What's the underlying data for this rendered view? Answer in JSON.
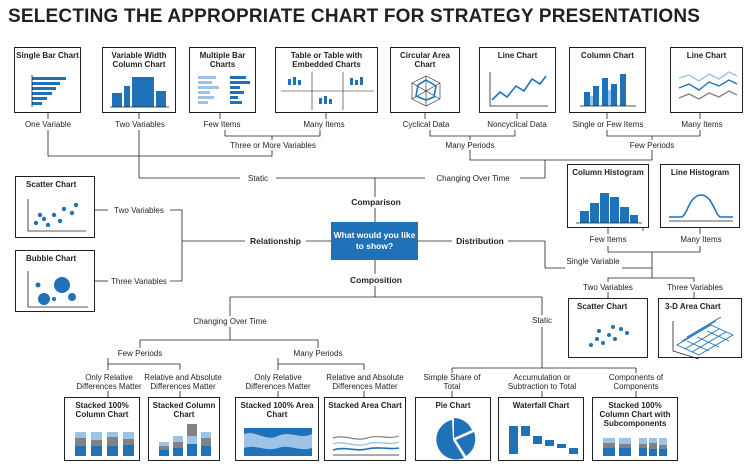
{
  "title": "SELECTING THE APPROPRIATE CHART FOR STRATEGY PRESENTATIONS",
  "center": "What would you like to show?",
  "branches": {
    "comparison": "Comparison",
    "relationship": "Relationship",
    "distribution": "Distribution",
    "composition": "Composition"
  },
  "top_boxes": [
    "Single Bar Chart",
    "Variable Width Column Chart",
    "Multiple Bar Charts",
    "Table or Table with Embedded Charts",
    "Circular Area Chart",
    "Line Chart",
    "Column Chart",
    "Line Chart"
  ],
  "top_labels": {
    "one_variable": "One Variable",
    "two_variables": "Two Variables",
    "few_items": "Few Items",
    "many_items": "Many Items",
    "three_or_more": "Three or More Variables",
    "cyclical": "Cyclical Data",
    "noncyclical": "Noncyclical Data",
    "single_or_few": "Single or Few Items",
    "many_items_2": "Many Items",
    "many_periods": "Many Periods",
    "few_periods": "Few Periods",
    "static": "Static",
    "changing_over_time": "Changing Over Time"
  },
  "relationship": {
    "scatter": "Scatter Chart",
    "bubble": "Bubble Chart",
    "two_variables": "Two Variables",
    "three_variables": "Three Variables"
  },
  "distribution": {
    "column_histogram": "Column Histogram",
    "line_histogram": "Line Histogram",
    "few_items": "Few Items",
    "many_items": "Many Items",
    "single_variable": "Single Variable",
    "two_variables": "Two Variables",
    "three_variables": "Three Variables",
    "scatter": "Scatter Chart",
    "area3d": "3-D Area Chart"
  },
  "composition": {
    "changing_over_time": "Changing Over Time",
    "static": "Static",
    "few_periods": "Few Periods",
    "many_periods": "Many Periods",
    "only_relative_1": "Only Relative Differences Matter",
    "relative_absolute_1": "Relative and Absolute Differences Matter",
    "only_relative_2": "Only Relative Differences Matter",
    "relative_absolute_2": "Relative and Absolute Differences Matter",
    "simple_share": "Simple Share of Total",
    "accumulation": "Accumulation or Subtraction to Total",
    "components": "Components of Components",
    "boxes": [
      "Stacked 100% Column Chart",
      "Stacked Column Chart",
      "Stacked 100% Area Chart",
      "Stacked Area Chart",
      "Pie Chart",
      "Waterfall Chart",
      "Stacked 100% Column Chart with Subcomponents"
    ]
  },
  "colors": {
    "blue": "#1f72b8",
    "light_blue": "#9dc3e6",
    "gray": "#808285",
    "dark": "#231f20"
  }
}
